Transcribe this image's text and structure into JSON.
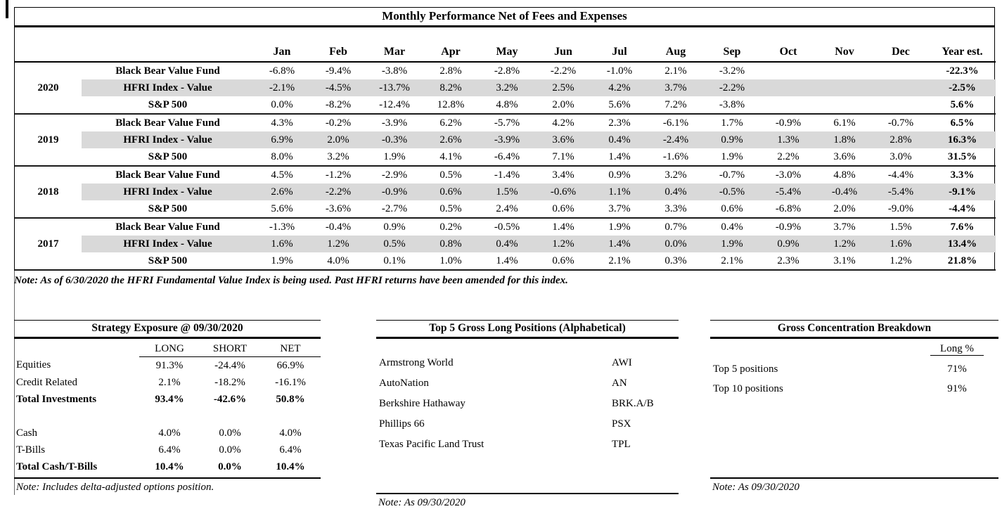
{
  "main_table": {
    "title": "Monthly Performance Net of Fees and Expenses",
    "months": [
      "Jan",
      "Feb",
      "Mar",
      "Apr",
      "May",
      "Jun",
      "Jul",
      "Aug",
      "Sep",
      "Oct",
      "Nov",
      "Dec"
    ],
    "year_est_label": "Year est.",
    "groups": [
      {
        "year": "2020",
        "rows": [
          {
            "label": "Black Bear Value Fund",
            "shaded": false,
            "values": [
              "-6.8%",
              "-9.4%",
              "-3.8%",
              "2.8%",
              "-2.8%",
              "-2.2%",
              "-1.0%",
              "2.1%",
              "-3.2%",
              "",
              "",
              ""
            ],
            "year_est": "-22.3%"
          },
          {
            "label": "HFRI Index  - Value",
            "shaded": true,
            "values": [
              "-2.1%",
              "-4.5%",
              "-13.7%",
              "8.2%",
              "3.2%",
              "2.5%",
              "4.2%",
              "3.7%",
              "-2.2%",
              "",
              "",
              ""
            ],
            "year_est": "-2.5%"
          },
          {
            "label": "S&P 500",
            "shaded": false,
            "values": [
              "0.0%",
              "-8.2%",
              "-12.4%",
              "12.8%",
              "4.8%",
              "2.0%",
              "5.6%",
              "7.2%",
              "-3.8%",
              "",
              "",
              ""
            ],
            "year_est": "5.6%"
          }
        ]
      },
      {
        "year": "2019",
        "rows": [
          {
            "label": "Black Bear Value Fund",
            "shaded": false,
            "values": [
              "4.3%",
              "-0.2%",
              "-3.9%",
              "6.2%",
              "-5.7%",
              "4.2%",
              "2.3%",
              "-6.1%",
              "1.7%",
              "-0.9%",
              "6.1%",
              "-0.7%"
            ],
            "year_est": "6.5%"
          },
          {
            "label": "HFRI Index  - Value",
            "shaded": true,
            "values": [
              "6.9%",
              "2.0%",
              "-0.3%",
              "2.6%",
              "-3.9%",
              "3.6%",
              "0.4%",
              "-2.4%",
              "0.9%",
              "1.3%",
              "1.8%",
              "2.8%"
            ],
            "year_est": "16.3%"
          },
          {
            "label": "S&P 500",
            "shaded": false,
            "values": [
              "8.0%",
              "3.2%",
              "1.9%",
              "4.1%",
              "-6.4%",
              "7.1%",
              "1.4%",
              "-1.6%",
              "1.9%",
              "2.2%",
              "3.6%",
              "3.0%"
            ],
            "year_est": "31.5%"
          }
        ]
      },
      {
        "year": "2018",
        "rows": [
          {
            "label": "Black Bear Value Fund",
            "shaded": false,
            "values": [
              "4.5%",
              "-1.2%",
              "-2.9%",
              "0.5%",
              "-1.4%",
              "3.4%",
              "0.9%",
              "3.2%",
              "-0.7%",
              "-3.0%",
              "4.8%",
              "-4.4%"
            ],
            "year_est": "3.3%"
          },
          {
            "label": "HFRI Index  - Value",
            "shaded": true,
            "values": [
              "2.6%",
              "-2.2%",
              "-0.9%",
              "0.6%",
              "1.5%",
              "-0.6%",
              "1.1%",
              "0.4%",
              "-0.5%",
              "-5.4%",
              "-0.4%",
              "-5.4%"
            ],
            "year_est": "-9.1%"
          },
          {
            "label": "S&P 500",
            "shaded": false,
            "values": [
              "5.6%",
              "-3.6%",
              "-2.7%",
              "0.5%",
              "2.4%",
              "0.6%",
              "3.7%",
              "3.3%",
              "0.6%",
              "-6.8%",
              "2.0%",
              "-9.0%"
            ],
            "year_est": "-4.4%"
          }
        ]
      },
      {
        "year": "2017",
        "rows": [
          {
            "label": "Black Bear Value Fund",
            "shaded": false,
            "values": [
              "-1.3%",
              "-0.4%",
              "0.9%",
              "0.2%",
              "-0.5%",
              "1.4%",
              "1.9%",
              "0.7%",
              "0.4%",
              "-0.9%",
              "3.7%",
              "1.5%"
            ],
            "year_est": "7.6%"
          },
          {
            "label": "HFRI Index  - Value",
            "shaded": true,
            "values": [
              "1.6%",
              "1.2%",
              "0.5%",
              "0.8%",
              "0.4%",
              "1.2%",
              "1.4%",
              "0.0%",
              "1.9%",
              "0.9%",
              "1.2%",
              "1.6%"
            ],
            "year_est": "13.4%"
          },
          {
            "label": "S&P 500",
            "shaded": false,
            "values": [
              "1.9%",
              "4.0%",
              "0.1%",
              "1.0%",
              "1.4%",
              "0.6%",
              "2.1%",
              "0.3%",
              "2.1%",
              "2.3%",
              "3.1%",
              "1.2%"
            ],
            "year_est": "21.8%"
          }
        ]
      }
    ],
    "note": "Note: As of 6/30/2020 the HFRI Fundamental Value Index is being used.  Past HFRI returns have been amended for this index."
  },
  "strategy_exposure": {
    "title": "Strategy Exposure @ 09/30/2020",
    "columns": [
      "LONG",
      "SHORT",
      "NET"
    ],
    "rows": [
      {
        "label": "Equities",
        "long": "91.3%",
        "short": "-24.4%",
        "net": "66.9%",
        "bold": false,
        "spacer": false
      },
      {
        "label": "Credit Related",
        "long": "2.1%",
        "short": "-18.2%",
        "net": "-16.1%",
        "bold": false,
        "spacer": false
      },
      {
        "label": "Total Investments",
        "long": "93.4%",
        "short": "-42.6%",
        "net": "50.8%",
        "bold": true,
        "spacer": false
      },
      {
        "label": "",
        "long": "",
        "short": "",
        "net": "",
        "bold": false,
        "spacer": true
      },
      {
        "label": "Cash",
        "long": "4.0%",
        "short": "0.0%",
        "net": "4.0%",
        "bold": false,
        "spacer": false
      },
      {
        "label": "T-Bills",
        "long": "6.4%",
        "short": "0.0%",
        "net": "6.4%",
        "bold": false,
        "spacer": false
      },
      {
        "label": "Total Cash/T-Bills",
        "long": "10.4%",
        "short": "0.0%",
        "net": "10.4%",
        "bold": true,
        "spacer": false
      }
    ],
    "note": "Note: Includes delta-adjusted options position."
  },
  "top_positions": {
    "title": "Top 5 Gross Long Positions (Alphabetical)",
    "rows": [
      {
        "name": "Armstrong World",
        "ticker": "AWI"
      },
      {
        "name": "AutoNation",
        "ticker": "AN"
      },
      {
        "name": "Berkshire Hathaway",
        "ticker": "BRK.A/B"
      },
      {
        "name": "Phillips 66",
        "ticker": "PSX"
      },
      {
        "name": "Texas Pacific Land Trust",
        "ticker": "TPL"
      }
    ],
    "note": "Note: As 09/30/2020"
  },
  "concentration": {
    "title": "Gross Concentration Breakdown",
    "column": "Long %",
    "rows": [
      {
        "label": "Top 5 positions",
        "value": "71%"
      },
      {
        "label": "Top 10 positions",
        "value": "91%"
      }
    ],
    "note": "Note: As 09/30/2020"
  }
}
